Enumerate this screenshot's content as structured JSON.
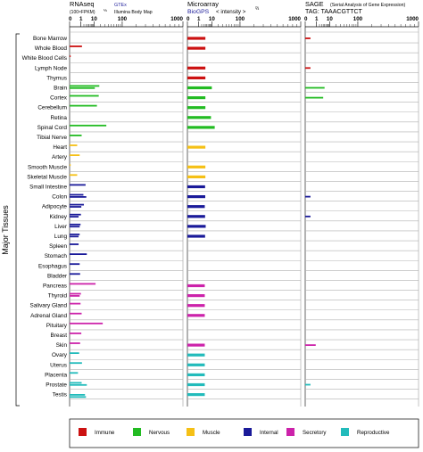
{
  "chart_data": {
    "type": "bar",
    "y_axis_title": "Major Tissues",
    "categories": [
      "Bone Marrow",
      "Whole Blood",
      "White Blood Cells",
      "Lymph Node",
      "Thymus",
      "Brain",
      "Cortex",
      "Cerebellum",
      "Retina",
      "Spinal Cord",
      "Tibial Nerve",
      "Heart",
      "Artery",
      "Smooth Muscle",
      "Skeletal Muscle",
      "Small Intestine",
      "Colon",
      "Adipocyte",
      "Kidney",
      "Liver",
      "Lung",
      "Spleen",
      "Stomach",
      "Esophagus",
      "Bladder",
      "Pancreas",
      "Thyroid",
      "Salivary Gland",
      "Adrenal Gland",
      "Pituitary",
      "Breast",
      "Skin",
      "Ovary",
      "Uterus",
      "Placenta",
      "Prostate",
      "Testis"
    ],
    "groups": [
      {
        "name": "Immune",
        "color": "#cc1111",
        "tissues": [
          "Bone Marrow",
          "Whole Blood",
          "White Blood Cells",
          "Lymph Node",
          "Thymus"
        ]
      },
      {
        "name": "Nervous",
        "color": "#22bb22",
        "tissues": [
          "Brain",
          "Cortex",
          "Cerebellum",
          "Retina",
          "Spinal Cord",
          "Tibial Nerve"
        ]
      },
      {
        "name": "Muscle",
        "color": "#f5c016",
        "tissues": [
          "Heart",
          "Artery",
          "Smooth Muscle",
          "Skeletal Muscle"
        ]
      },
      {
        "name": "Internal",
        "color": "#1a1a99",
        "tissues": [
          "Small Intestine",
          "Colon",
          "Adipocyte",
          "Kidney",
          "Liver",
          "Lung",
          "Spleen",
          "Stomach",
          "Esophagus",
          "Bladder"
        ]
      },
      {
        "name": "Secretory",
        "color": "#cc22aa",
        "tissues": [
          "Pancreas",
          "Thyroid",
          "Salivary Gland",
          "Adrenal Gland",
          "Pituitary",
          "Breast",
          "Skin"
        ]
      },
      {
        "name": "Reproductive",
        "color": "#22bbbb",
        "tissues": [
          "Ovary",
          "Uterus",
          "Placenta",
          "Prostate",
          "Testis"
        ]
      }
    ],
    "panels": [
      {
        "title": "RNAseq",
        "subtitle": "(100×FPKM)",
        "subtitle_exp": "⅓",
        "link1": "GTEx",
        "link2": "Illumina Body Map",
        "ticks": [
          "0",
          "1",
          "10",
          "100",
          "1000"
        ],
        "xlim": [
          0,
          1000
        ],
        "series": [
          {
            "name": "GTEx",
            "values": [
              null,
              1.3,
              0,
              null,
              null,
              18,
              17,
              14,
              null,
              34,
              1.2,
              0.3,
              0.7,
              0,
              0.3,
              2.8,
              1.8,
              2.0,
              1.0,
              0.9,
              0.7,
              0.5,
              3.5,
              0.7,
              0.8,
              12,
              1.0,
              0.9,
              1.2,
              25,
              1.1,
              0.8,
              0.6,
              1.3,
              0.4,
              1.2,
              null
            ]
          },
          {
            "name": "Illumina Body Map",
            "values": [
              null,
              null,
              null,
              null,
              null,
              11,
              null,
              null,
              null,
              null,
              null,
              null,
              null,
              null,
              null,
              null,
              3.2,
              1.1,
              0.5,
              0.7,
              0.5,
              null,
              null,
              null,
              null,
              null,
              0.7,
              null,
              null,
              null,
              null,
              null,
              null,
              null,
              null,
              3.5,
              2.5
            ]
          },
          {
            "name": "GTEx (2)",
            "values": [
              null,
              null,
              null,
              null,
              null,
              null,
              null,
              null,
              null,
              null,
              null,
              null,
              null,
              null,
              null,
              null,
              null,
              null,
              null,
              null,
              null,
              null,
              null,
              null,
              null,
              null,
              null,
              null,
              null,
              null,
              null,
              null,
              null,
              null,
              null,
              null,
              3.0
            ]
          }
        ]
      },
      {
        "title": "Microarray",
        "link1": "BioGPS",
        "subtitle": "< intensity >",
        "subtitle_exp": "⅔",
        "ticks": [
          "0",
          "1",
          "10",
          "100",
          "1000"
        ],
        "xlim": [
          0,
          1000
        ],
        "series": [
          {
            "name": "BioGPS",
            "values": [
              4,
              4,
              null,
              4,
              4,
              10,
              4,
              4,
              9,
              14,
              null,
              4,
              null,
              4,
              4,
              3.8,
              3.9,
              3.6,
              3.8,
              4.2,
              3.8,
              null,
              null,
              null,
              null,
              3.6,
              3.6,
              3.6,
              3.6,
              null,
              null,
              3.6,
              3.6,
              3.6,
              3.6,
              3.6,
              3.6
            ]
          }
        ]
      },
      {
        "title": "SAGE",
        "subtitle": "(Serial Analysis of Gene Expression)",
        "tag": "TAG: TAAACGTTCT",
        "ticks": [
          "0",
          "1",
          "10",
          "100",
          "1000"
        ],
        "xlim": [
          0,
          1000
        ],
        "series": [
          {
            "name": "SAGE",
            "values": [
              0.1,
              null,
              null,
              0.1,
              null,
              5,
              4,
              null,
              null,
              null,
              null,
              null,
              null,
              null,
              null,
              null,
              0.1,
              null,
              0.1,
              null,
              null,
              null,
              null,
              null,
              null,
              null,
              null,
              null,
              null,
              null,
              null,
              0.8,
              null,
              null,
              null,
              0.1,
              null
            ]
          }
        ]
      }
    ],
    "legend": {
      "position": "bottom",
      "items": [
        "Immune",
        "Nervous",
        "Muscle",
        "Internal",
        "Secretory",
        "Reproductive"
      ]
    }
  }
}
